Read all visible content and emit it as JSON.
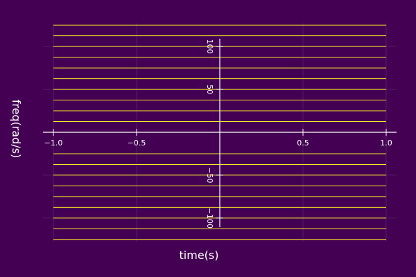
{
  "chart_data": {
    "type": "line",
    "title": "",
    "xlabel": "time(s)",
    "ylabel": "freq(rad/s)",
    "xlim": [
      -1.0,
      1.0
    ],
    "ylim": [
      -130,
      130
    ],
    "grid": true,
    "x_ticks": [
      {
        "value": -1.0,
        "label": "−1.0"
      },
      {
        "value": -0.5,
        "label": "−0.5"
      },
      {
        "value": 0.5,
        "label": "0.5"
      },
      {
        "value": 1.0,
        "label": "1.0"
      }
    ],
    "y_ticks": [
      {
        "value": 100,
        "label": "100"
      },
      {
        "value": 50,
        "label": "50"
      },
      {
        "value": -50,
        "label": "−50"
      },
      {
        "value": -100,
        "label": "−100"
      }
    ],
    "line_color": "#fde725",
    "series": [
      {
        "x": [
          -1.0,
          1.0
        ],
        "y": [
          125,
          125
        ]
      },
      {
        "x": [
          -1.0,
          1.0
        ],
        "y": [
          112.5,
          112.5
        ]
      },
      {
        "x": [
          -1.0,
          1.0
        ],
        "y": [
          100,
          100
        ]
      },
      {
        "x": [
          -1.0,
          1.0
        ],
        "y": [
          87.5,
          87.5
        ]
      },
      {
        "x": [
          -1.0,
          1.0
        ],
        "y": [
          75,
          75
        ]
      },
      {
        "x": [
          -1.0,
          1.0
        ],
        "y": [
          62.5,
          62.5
        ]
      },
      {
        "x": [
          -1.0,
          1.0
        ],
        "y": [
          50,
          50
        ]
      },
      {
        "x": [
          -1.0,
          1.0
        ],
        "y": [
          37.5,
          37.5
        ]
      },
      {
        "x": [
          -1.0,
          1.0
        ],
        "y": [
          25,
          25
        ]
      },
      {
        "x": [
          -1.0,
          1.0
        ],
        "y": [
          12.5,
          12.5
        ]
      },
      {
        "x": [
          -1.0,
          1.0
        ],
        "y": [
          -25,
          -25
        ]
      },
      {
        "x": [
          -1.0,
          1.0
        ],
        "y": [
          -37.5,
          -37.5
        ]
      },
      {
        "x": [
          -1.0,
          1.0
        ],
        "y": [
          -50,
          -50
        ]
      },
      {
        "x": [
          -1.0,
          1.0
        ],
        "y": [
          -62.5,
          -62.5
        ]
      },
      {
        "x": [
          -1.0,
          1.0
        ],
        "y": [
          -75,
          -75
        ]
      },
      {
        "x": [
          -1.0,
          1.0
        ],
        "y": [
          -87.5,
          -87.5
        ]
      },
      {
        "x": [
          -1.0,
          1.0
        ],
        "y": [
          -100,
          -100
        ]
      },
      {
        "x": [
          -1.0,
          1.0
        ],
        "y": [
          -112.5,
          -112.5
        ]
      },
      {
        "x": [
          -1.0,
          1.0
        ],
        "y": [
          -125,
          -125
        ]
      }
    ]
  }
}
